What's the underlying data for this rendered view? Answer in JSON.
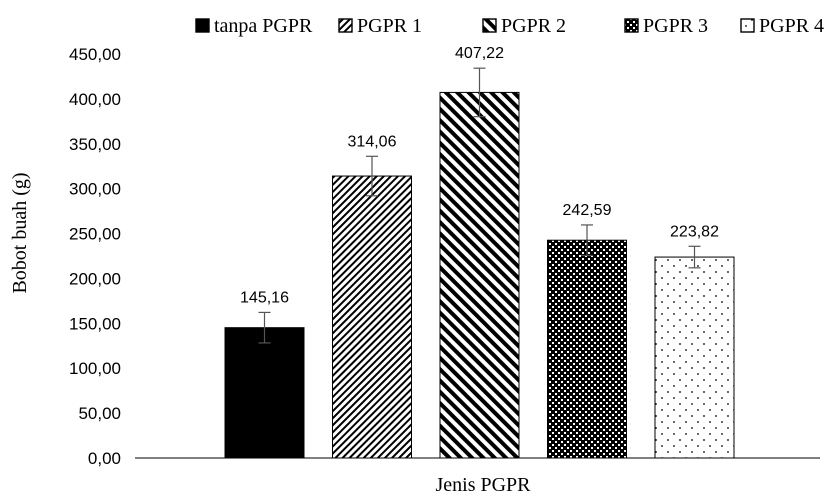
{
  "chart_data": {
    "type": "bar",
    "title": "",
    "xlabel": "Jenis PGPR",
    "ylabel": "Bobot buah (g)",
    "ylim": [
      0,
      450
    ],
    "yticks": [
      0,
      50,
      100,
      150,
      200,
      250,
      300,
      350,
      400,
      450
    ],
    "ytick_labels": [
      "0,00",
      "50,00",
      "100,00",
      "150,00",
      "200,00",
      "250,00",
      "300,00",
      "350,00",
      "400,00",
      "450,00"
    ],
    "grid": false,
    "legend_position": "top",
    "categories": [
      "tanpa PGPR",
      "PGPR 1",
      "PGPR 2",
      "PGPR 3",
      "PGPR 4"
    ],
    "series": [
      {
        "name": "tanpa PGPR",
        "value": 145.16,
        "label": "145,16",
        "error": 17,
        "pattern": "solid"
      },
      {
        "name": "PGPR 1",
        "value": 314.06,
        "label": "314,06",
        "error": 22,
        "pattern": "fine-diagonal"
      },
      {
        "name": "PGPR 2",
        "value": 407.22,
        "label": "407,22",
        "error": 27,
        "pattern": "wide-diagonal"
      },
      {
        "name": "PGPR 3",
        "value": 242.59,
        "label": "242,59",
        "error": 17,
        "pattern": "checker"
      },
      {
        "name": "PGPR 4",
        "value": 223.82,
        "label": "223,82",
        "error": 12,
        "pattern": "dots"
      }
    ]
  }
}
